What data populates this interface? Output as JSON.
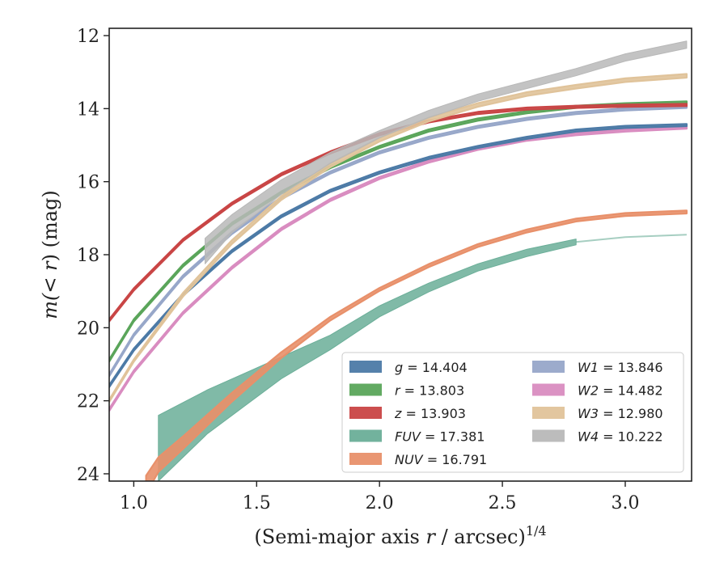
{
  "chart_data": {
    "type": "line",
    "xlabel_main": "(Semi-major axis ",
    "xlabel_var": "r",
    "xlabel_tail": " / arcsec)",
    "xlabel_sup": "1/4",
    "ylabel_pre": "m(< ",
    "ylabel_var": "r",
    "ylabel_post": ") (mag)",
    "xlim": [
      0.9,
      3.27
    ],
    "ylim": [
      24.2,
      11.8
    ],
    "y_inverted": true,
    "xticks": [
      1.0,
      1.5,
      2.0,
      2.5,
      3.0
    ],
    "xtick_labels": [
      "1.0",
      "1.5",
      "2.0",
      "2.5",
      "3.0"
    ],
    "yticks": [
      12,
      14,
      16,
      18,
      20,
      22,
      24
    ],
    "ytick_labels": [
      "12",
      "14",
      "16",
      "18",
      "20",
      "22",
      "24"
    ],
    "legend_position": "lower-right",
    "series": [
      {
        "name": "g",
        "label": "g = 14.404",
        "color": "#4c7aa6",
        "x": [
          0.9,
          1.0,
          1.2,
          1.4,
          1.6,
          1.8,
          2.0,
          2.2,
          2.4,
          2.6,
          2.8,
          3.0,
          3.25
        ],
        "y": [
          21.6,
          20.6,
          19.1,
          17.9,
          16.95,
          16.25,
          15.75,
          15.35,
          15.05,
          14.8,
          14.6,
          14.5,
          14.45
        ],
        "y_err": [
          0.03,
          0.03,
          0.03,
          0.03,
          0.03,
          0.03,
          0.03,
          0.03,
          0.03,
          0.03,
          0.03,
          0.03,
          0.03
        ]
      },
      {
        "name": "r",
        "label": "r = 13.803",
        "color": "#5aa55a",
        "x": [
          0.9,
          1.0,
          1.2,
          1.4,
          1.6,
          1.8,
          2.0,
          2.2,
          2.4,
          2.6,
          2.8,
          3.0,
          3.25
        ],
        "y": [
          20.9,
          19.8,
          18.3,
          17.15,
          16.3,
          15.6,
          15.05,
          14.6,
          14.3,
          14.1,
          13.95,
          13.88,
          13.83
        ],
        "y_err": [
          0.03,
          0.03,
          0.03,
          0.03,
          0.03,
          0.03,
          0.03,
          0.03,
          0.03,
          0.03,
          0.03,
          0.03,
          0.03
        ]
      },
      {
        "name": "z",
        "label": "z = 13.903",
        "color": "#c94545",
        "x": [
          0.9,
          1.0,
          1.2,
          1.4,
          1.6,
          1.8,
          2.0,
          2.2,
          2.4,
          2.6,
          2.8,
          3.0,
          3.25
        ],
        "y": [
          19.8,
          18.95,
          17.6,
          16.6,
          15.8,
          15.2,
          14.7,
          14.35,
          14.12,
          14.0,
          13.95,
          13.92,
          13.9
        ],
        "y_err": [
          0.03,
          0.03,
          0.03,
          0.03,
          0.03,
          0.03,
          0.03,
          0.03,
          0.03,
          0.03,
          0.03,
          0.03,
          0.03
        ]
      },
      {
        "name": "FUV",
        "label": "FUV = 17.381",
        "color": "#6aae98",
        "band": true,
        "x": [
          1.1,
          1.3,
          1.45,
          1.6,
          1.8,
          2.0,
          2.2,
          2.4,
          2.6,
          2.8
        ],
        "y": [
          23.3,
          22.3,
          21.7,
          21.1,
          20.4,
          19.55,
          18.9,
          18.35,
          17.95,
          17.65
        ],
        "y_err": [
          0.9,
          0.6,
          0.45,
          0.3,
          0.2,
          0.15,
          0.12,
          0.1,
          0.1,
          0.08
        ],
        "ext_x": [
          2.8,
          3.0,
          3.25
        ],
        "ext_y": [
          17.65,
          17.52,
          17.45
        ]
      },
      {
        "name": "NUV",
        "label": "NUV = 16.791",
        "color": "#e8906a",
        "x": [
          1.05,
          1.1,
          1.2,
          1.4,
          1.6,
          1.8,
          2.0,
          2.2,
          2.4,
          2.6,
          2.8,
          3.0,
          3.25
        ],
        "y": [
          24.3,
          23.75,
          23.15,
          21.9,
          20.75,
          19.75,
          18.95,
          18.3,
          17.75,
          17.35,
          17.05,
          16.9,
          16.83
        ],
        "y_err": [
          0.25,
          0.2,
          0.17,
          0.12,
          0.08,
          0.05,
          0.04,
          0.04,
          0.04,
          0.04,
          0.04,
          0.04,
          0.04
        ]
      },
      {
        "name": "W1",
        "label": "W1 = 13.846",
        "color": "#97a7c9",
        "x": [
          0.9,
          1.0,
          1.2,
          1.4,
          1.6,
          1.8,
          2.0,
          2.2,
          2.4,
          2.6,
          2.8,
          3.0,
          3.25
        ],
        "y": [
          21.3,
          20.2,
          18.6,
          17.4,
          16.45,
          15.75,
          15.2,
          14.8,
          14.5,
          14.28,
          14.12,
          14.02,
          13.95
        ],
        "y_err": [
          0.03,
          0.03,
          0.03,
          0.03,
          0.03,
          0.03,
          0.03,
          0.03,
          0.03,
          0.03,
          0.03,
          0.03,
          0.03
        ]
      },
      {
        "name": "W2",
        "label": "W2 = 14.482",
        "color": "#d98cc0",
        "x": [
          0.9,
          1.0,
          1.2,
          1.4,
          1.6,
          1.8,
          2.0,
          2.2,
          2.4,
          2.6,
          2.8,
          3.0,
          3.25
        ],
        "y": [
          22.25,
          21.2,
          19.6,
          18.35,
          17.3,
          16.5,
          15.9,
          15.45,
          15.1,
          14.85,
          14.7,
          14.6,
          14.52
        ],
        "y_err": [
          0.03,
          0.03,
          0.03,
          0.03,
          0.03,
          0.03,
          0.03,
          0.03,
          0.03,
          0.03,
          0.03,
          0.03,
          0.03
        ]
      },
      {
        "name": "W3",
        "label": "W3 = 12.980",
        "color": "#e0c39a",
        "x": [
          0.9,
          1.0,
          1.2,
          1.4,
          1.6,
          1.8,
          2.0,
          2.2,
          2.4,
          2.6,
          2.8,
          3.0,
          3.25
        ],
        "y": [
          22.0,
          20.9,
          19.1,
          17.65,
          16.45,
          15.55,
          14.85,
          14.3,
          13.9,
          13.6,
          13.4,
          13.22,
          13.1
        ],
        "y_err": [
          0.03,
          0.03,
          0.05,
          0.05,
          0.05,
          0.05,
          0.05,
          0.05,
          0.05,
          0.05,
          0.05,
          0.05,
          0.05
        ]
      },
      {
        "name": "W4",
        "label": "W4 = 10.222",
        "color": "#b8b8b8",
        "band": true,
        "x": [
          1.29,
          1.4,
          1.6,
          1.8,
          2.0,
          2.2,
          2.4,
          2.6,
          2.8,
          3.0,
          3.25
        ],
        "y": [
          17.9,
          17.15,
          16.15,
          15.35,
          14.7,
          14.15,
          13.7,
          13.35,
          13.0,
          12.6,
          12.25
        ],
        "y_err": [
          0.35,
          0.25,
          0.2,
          0.15,
          0.1,
          0.1,
          0.1,
          0.1,
          0.1,
          0.1,
          0.1
        ]
      }
    ]
  }
}
